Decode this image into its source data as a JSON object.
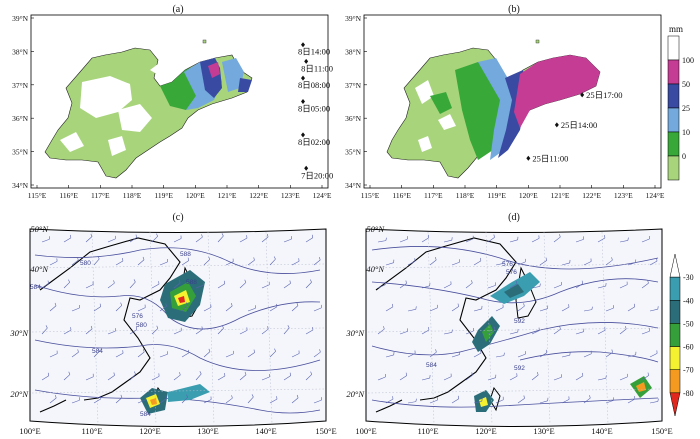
{
  "panels": {
    "a": {
      "label": "(a)",
      "x_ticks": [
        "115°E",
        "116°E",
        "117°E",
        "118°E",
        "119°E",
        "120°E",
        "121°E",
        "122°E",
        "123°E",
        "124°E"
      ],
      "y_ticks": [
        "34°N",
        "35°N",
        "36°N",
        "37°N",
        "38°N",
        "39°N"
      ],
      "track": [
        {
          "time": "8日14:00",
          "lon": 123.4,
          "lat": 38.2
        },
        {
          "time": "8日11:00",
          "lon": 123.5,
          "lat": 37.7
        },
        {
          "time": "8日08:00",
          "lon": 123.4,
          "lat": 37.2
        },
        {
          "time": "8日05:00",
          "lon": 123.4,
          "lat": 36.5
        },
        {
          "time": "8日02:00",
          "lon": 123.4,
          "lat": 35.5
        },
        {
          "time": "7日20:00",
          "lon": 123.5,
          "lat": 34.5
        }
      ]
    },
    "b": {
      "label": "(b)",
      "x_ticks": [
        "115°E",
        "116°E",
        "117°E",
        "118°E",
        "119°E",
        "120°E",
        "121°E",
        "122°E",
        "123°E",
        "124°E"
      ],
      "y_ticks": [
        "34°N",
        "35°N",
        "36°N",
        "37°N",
        "38°N",
        "39°N"
      ],
      "track": [
        {
          "time": "25日17:00",
          "lon": 121.7,
          "lat": 36.7
        },
        {
          "time": "25日14:00",
          "lon": 120.9,
          "lat": 35.8
        },
        {
          "time": "25日11:00",
          "lon": 120.0,
          "lat": 34.8
        }
      ]
    },
    "c": {
      "label": "(c)",
      "lat_labels": [
        "50°N",
        "40°N",
        "30°N",
        "20°N"
      ],
      "lon_labels": [
        "100°E",
        "110°E",
        "120°E",
        "130°E",
        "140°E",
        "150°E"
      ],
      "contour_labels": [
        "580",
        "584",
        "588",
        "576",
        "580",
        "584",
        "588",
        "584"
      ]
    },
    "d": {
      "label": "(d)",
      "lat_labels": [
        "50°N",
        "40°N",
        "30°N",
        "20°N"
      ],
      "lon_labels": [
        "100°E",
        "110°E",
        "120°E",
        "130°E",
        "140°E",
        "150°E"
      ],
      "contour_labels": [
        "576",
        "576",
        "592",
        "584",
        "592"
      ]
    }
  },
  "precip_legend": {
    "unit": "mm",
    "ticks": [
      "100",
      "50",
      "25",
      "10",
      "0"
    ],
    "colors": [
      "#ffffff",
      "#c53c95",
      "#394aa3",
      "#73a9dc",
      "#38a838",
      "#a8d47c"
    ]
  },
  "tbb_legend": {
    "ticks": [
      "-30",
      "-40",
      "-50",
      "-60",
      "-70",
      "-80"
    ],
    "colors": [
      "#ffffff",
      "#3b9db0",
      "#2b6e7a",
      "#35a03a",
      "#f5f030",
      "#f59a20",
      "#e0281e"
    ]
  }
}
